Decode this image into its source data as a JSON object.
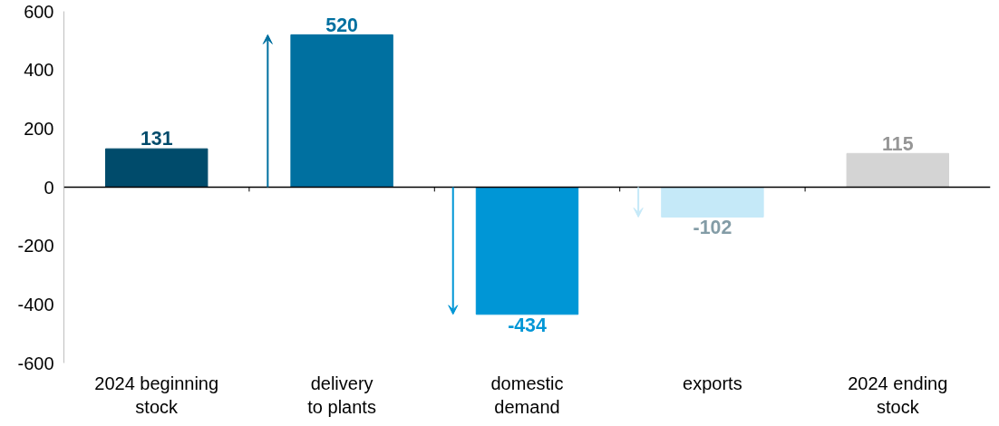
{
  "chart_data": {
    "type": "bar",
    "categories": [
      "2024 beginning\nstock",
      "delivery\nto plants",
      "domestic\ndemand",
      "exports",
      "2024 ending\nstock"
    ],
    "values": [
      131,
      520,
      -434,
      -102,
      115
    ],
    "colors": [
      "#004b6b",
      "#0070a0",
      "#0096d6",
      "#c5e9f8",
      "#d4d4d4"
    ],
    "ylim": [
      -600,
      600
    ],
    "yticks": [
      -600,
      -400,
      -200,
      0,
      200,
      400,
      600
    ],
    "data_labels": true
  }
}
